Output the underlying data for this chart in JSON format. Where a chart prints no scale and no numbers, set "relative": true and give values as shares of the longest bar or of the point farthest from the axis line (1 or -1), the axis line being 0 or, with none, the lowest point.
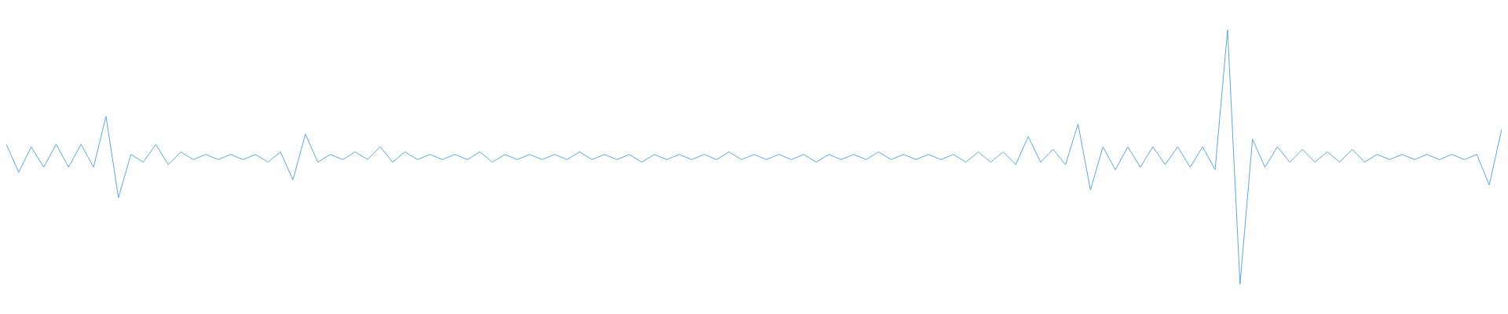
{
  "chart_data": {
    "type": "line",
    "relative": true,
    "marker": "none",
    "grid": false,
    "categories": [
      null,
      null,
      null,
      null,
      null,
      null,
      null,
      null,
      null,
      null,
      null,
      null,
      null,
      null,
      null,
      null,
      null,
      null,
      null,
      null,
      null,
      null,
      null,
      null,
      null,
      null,
      null,
      null,
      null,
      null,
      null,
      null,
      null,
      null,
      null,
      null,
      null,
      null,
      null,
      null,
      null,
      null,
      null,
      null,
      null,
      null,
      null,
      null,
      null,
      null,
      null,
      null,
      null,
      null,
      null,
      null,
      null,
      null,
      null,
      null,
      null,
      null,
      null,
      null,
      null,
      null,
      null,
      null,
      null,
      null,
      null,
      null,
      null,
      null,
      null,
      null,
      null,
      null,
      null,
      null,
      null,
      null,
      null,
      null,
      null,
      null,
      null,
      null,
      null,
      null,
      null,
      null,
      null,
      null,
      null,
      null,
      null,
      null,
      null,
      null,
      null,
      null,
      null,
      null,
      null,
      null,
      null,
      null,
      null,
      null,
      null,
      null,
      null,
      null,
      null,
      null,
      null,
      null,
      null,
      null,
      null
    ],
    "series": [
      {
        "color": "#5aa9e0",
        "values": [
          0.55,
          0.44,
          0.54,
          0.46,
          0.55,
          0.46,
          0.55,
          0.46,
          0.66,
          0.34,
          0.51,
          0.48,
          0.55,
          0.47,
          0.52,
          0.49,
          0.51,
          0.49,
          0.51,
          0.49,
          0.51,
          0.48,
          0.52,
          0.41,
          0.59,
          0.48,
          0.51,
          0.49,
          0.52,
          0.49,
          0.54,
          0.48,
          0.52,
          0.49,
          0.51,
          0.49,
          0.51,
          0.49,
          0.52,
          0.48,
          0.51,
          0.49,
          0.51,
          0.49,
          0.51,
          0.49,
          0.52,
          0.49,
          0.51,
          0.49,
          0.51,
          0.48,
          0.51,
          0.49,
          0.51,
          0.49,
          0.51,
          0.49,
          0.52,
          0.49,
          0.51,
          0.49,
          0.51,
          0.49,
          0.51,
          0.48,
          0.51,
          0.49,
          0.51,
          0.49,
          0.52,
          0.49,
          0.51,
          0.49,
          0.51,
          0.49,
          0.51,
          0.48,
          0.52,
          0.48,
          0.52,
          0.47,
          0.58,
          0.48,
          0.53,
          0.47,
          0.63,
          0.37,
          0.54,
          0.45,
          0.54,
          0.46,
          0.54,
          0.47,
          0.54,
          0.46,
          0.54,
          0.45,
          1,
          0,
          0.57,
          0.46,
          0.54,
          0.48,
          0.53,
          0.48,
          0.52,
          0.48,
          0.53,
          0.48,
          0.51,
          0.49,
          0.51,
          0.49,
          0.51,
          0.49,
          0.51,
          0.49,
          0.51,
          0.39,
          0.61
        ]
      }
    ]
  }
}
